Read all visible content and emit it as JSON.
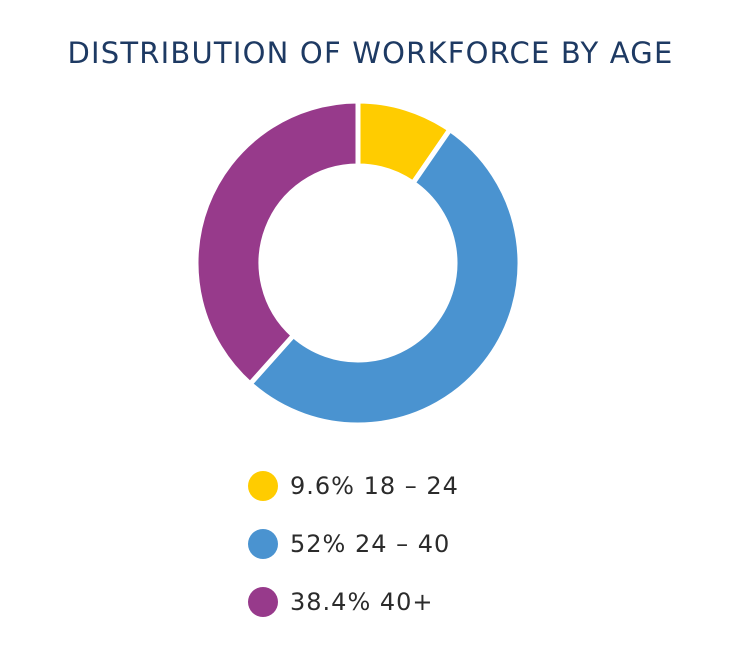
{
  "chart_data": {
    "type": "pie",
    "title": "DISTRIBUTION OF WORKFORCE BY AGE",
    "slices": [
      {
        "label": "18 – 24",
        "value": 9.6,
        "value_label": "9.6%",
        "color": "#ffcc00"
      },
      {
        "label": "24 – 40",
        "value": 52,
        "value_label": "52%",
        "color": "#4a93d0"
      },
      {
        "label": "40+",
        "value": 38.4,
        "value_label": "38.4%",
        "color": "#973a8b"
      }
    ],
    "legend_placement": "bottom"
  },
  "legend": [
    {
      "text": "9.6% 18 – 24",
      "color": "#ffcc00"
    },
    {
      "text": "52% 24 – 40",
      "color": "#4a93d0"
    },
    {
      "text": "38.4% 40+",
      "color": "#973a8b"
    }
  ]
}
